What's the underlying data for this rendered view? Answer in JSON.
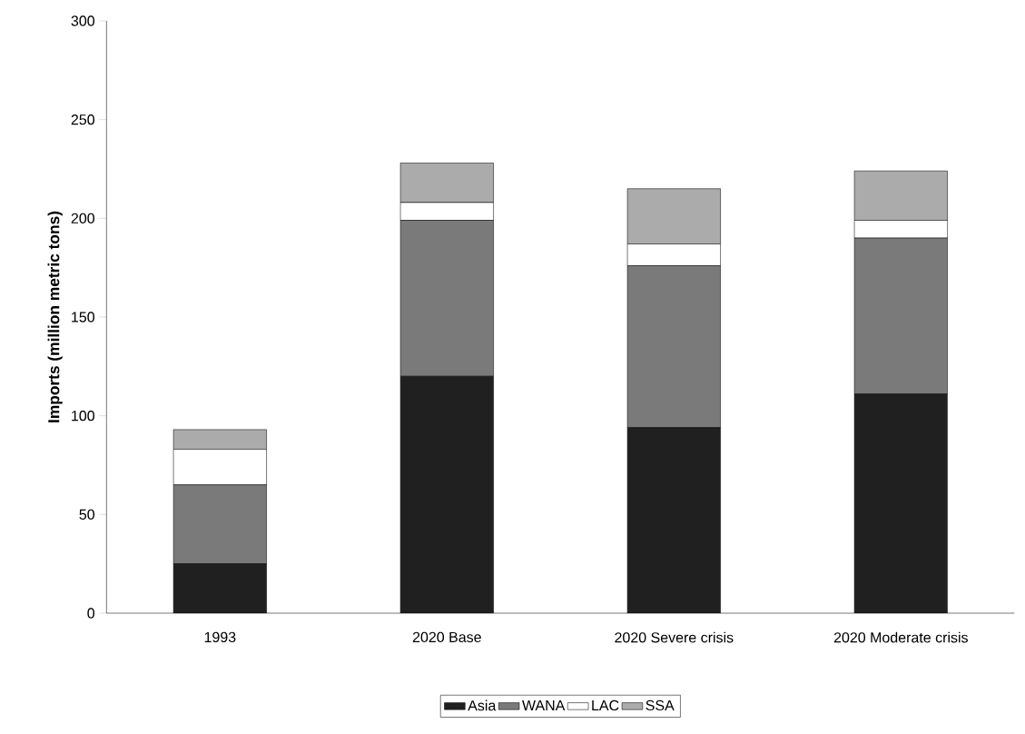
{
  "chart_data": {
    "type": "bar",
    "stacked": true,
    "ylabel": "Imports (million metric tons)",
    "categories": [
      "1993",
      "2020 Base",
      "2020 Severe crisis",
      "2020 Moderate crisis"
    ],
    "series": [
      {
        "name": "Asia",
        "color": "#202020",
        "values": [
          25,
          120,
          94,
          111
        ]
      },
      {
        "name": "WANA",
        "color": "#7a7a7a",
        "values": [
          40,
          79,
          82,
          79
        ]
      },
      {
        "name": "LAC",
        "color": "#ffffff",
        "values": [
          18,
          9,
          11,
          9
        ]
      },
      {
        "name": "SSA",
        "color": "#ababab",
        "values": [
          10,
          20,
          28,
          25
        ]
      }
    ],
    "ylim": [
      0,
      300
    ],
    "yticks": [
      0,
      50,
      100,
      150,
      200,
      250,
      300
    ],
    "grid": false,
    "legend": "bottom"
  }
}
